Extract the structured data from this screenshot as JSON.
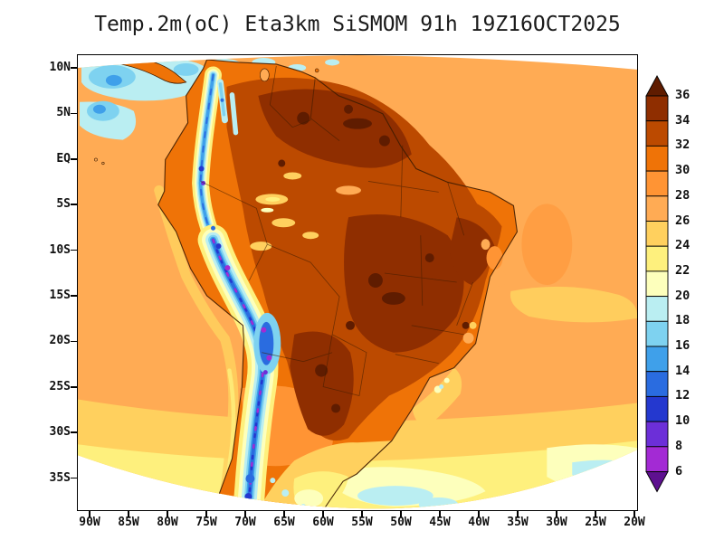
{
  "title": "Temp.2m(oC) Eta3km SiSMOM 91h 19Z16OCT2025",
  "axes": {
    "lat_ticks": [
      "10N",
      "5N",
      "EQ",
      "5S",
      "10S",
      "15S",
      "20S",
      "25S",
      "30S",
      "35S"
    ],
    "lon_ticks": [
      "90W",
      "85W",
      "80W",
      "75W",
      "70W",
      "65W",
      "60W",
      "55W",
      "50W",
      "45W",
      "40W",
      "35W",
      "30W",
      "25W",
      "20W"
    ]
  },
  "colorbar": {
    "levels": [
      "36",
      "34",
      "32",
      "30",
      "28",
      "26",
      "24",
      "22",
      "20",
      "18",
      "16",
      "14",
      "12",
      "10",
      "8",
      "6"
    ],
    "order": [
      "gt36",
      "s34",
      "s32",
      "s30",
      "s28",
      "s26",
      "s24",
      "s22",
      "s20",
      "s18",
      "s16",
      "s14",
      "s12",
      "s10",
      "s8",
      "s6",
      "lt6"
    ],
    "palette": {
      "gt36": "#5f1c00",
      "s34": "#8f2e00",
      "s32": "#bc4a00",
      "s30": "#ef7307",
      "s28": "#ff9434",
      "s26": "#ffab54",
      "s24": "#ffd05e",
      "s22": "#fef07d",
      "s20": "#fdffbc",
      "s18": "#baeef2",
      "s16": "#7ed2f0",
      "s14": "#3fa0ea",
      "s12": "#2a6ce0",
      "s10": "#2438cf",
      "s8": "#6c2fd8",
      "s6": "#a32ad4",
      "lt6": "#5e1090"
    }
  },
  "chart_data": {
    "type": "heatmap",
    "title": "Temp.2m(oC) Eta3km SiSMOM 91h 19Z16OCT2025",
    "variable": "2 m temperature (oC)",
    "model": "Eta3km SiSMOM",
    "forecast_hour": "91h",
    "valid_label": "19Z16OCT2025",
    "x_tick_labels": [
      "90W",
      "85W",
      "80W",
      "75W",
      "70W",
      "65W",
      "60W",
      "55W",
      "50W",
      "45W",
      "40W",
      "35W",
      "30W",
      "25W",
      "20W"
    ],
    "y_tick_labels": [
      "10N",
      "5N",
      "EQ",
      "5S",
      "10S",
      "15S",
      "20S",
      "25S",
      "30S",
      "35S"
    ],
    "color_levels_c": [
      6,
      8,
      10,
      12,
      14,
      16,
      18,
      20,
      22,
      24,
      26,
      28,
      30,
      32,
      34,
      36
    ],
    "legend_position": "right",
    "grid": false,
    "regions_estimated": [
      {
        "region": "Amazon basin / central Brazil interior",
        "temp_c": "32-36+"
      },
      {
        "region": "Gran Chaco (Paraguay / N Argentina)",
        "temp_c": "32-36"
      },
      {
        "region": "Tropical Atlantic and Caribbean ocean",
        "temp_c": "26-28"
      },
      {
        "region": "Andes cordillera",
        "temp_c": "6-18"
      },
      {
        "region": "Pacific off Ecuador/Colombia (NW corner)",
        "temp_c": "16-20"
      },
      {
        "region": "Subtropical South Atlantic south of 25S",
        "temp_c": "20-24"
      },
      {
        "region": "Southeast Brazil highlands",
        "temp_c": "20-26"
      },
      {
        "region": "Pampas / Rio de la Plata",
        "temp_c": "18-24"
      }
    ]
  }
}
